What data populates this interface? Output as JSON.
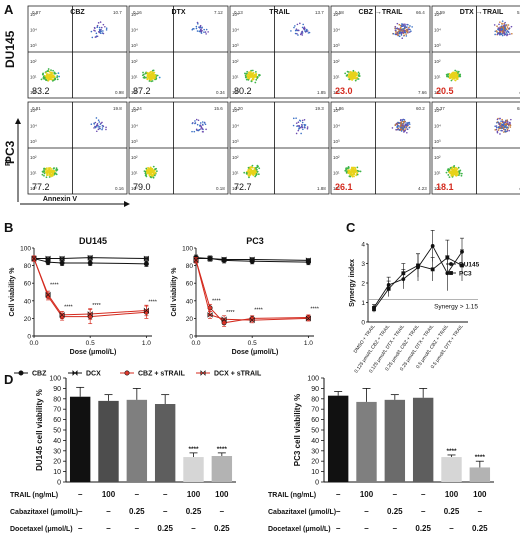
{
  "panel_labels": [
    "A",
    "B",
    "C",
    "D"
  ],
  "flow": {
    "columns": [
      "CBZ",
      "DTX",
      "TRAIL",
      "CBZ →TRAIL",
      "DTX →TRAIL"
    ],
    "rows": [
      {
        "name": "DU145",
        "panels": [
          {
            "ll": "83.2",
            "ul": "0.87",
            "ur": "10.7",
            "lr": "0.98",
            "ll_red": false
          },
          {
            "ll": "87.2",
            "ul": "0.16",
            "ur": "7.12",
            "lr": "0.34",
            "ll_red": false
          },
          {
            "ll": "80.2",
            "ul": "0.13",
            "ur": "13.7",
            "lr": "1.85",
            "ll_red": false
          },
          {
            "ll": "23.0",
            "ul": "0.58",
            "ur": "66.4",
            "lr": "7.66",
            "ll_red": true
          },
          {
            "ll": "20.5",
            "ul": "0.59",
            "ur": "51.8",
            "lr": "4.76",
            "ll_red": true
          }
        ]
      },
      {
        "name": "PC3",
        "panels": [
          {
            "ll": "77.2",
            "ul": "0.81",
            "ur": "19.8",
            "lr": "0.16",
            "ll_red": false
          },
          {
            "ll": "79.0",
            "ul": "0.24",
            "ur": "15.6",
            "lr": "0.18",
            "ll_red": false
          },
          {
            "ll": "72.7",
            "ul": "0.20",
            "ur": "19.3",
            "lr": "1.88",
            "ll_red": false
          },
          {
            "ll": "26.1",
            "ul": "1.86",
            "ur": "60.2",
            "lr": "4.23",
            "ll_red": true
          },
          {
            "ll": "18.1",
            "ul": "0.37",
            "ur": "68.6",
            "lr": "4.57",
            "ll_red": true
          }
        ]
      }
    ],
    "y_ticks": [
      "10⁵",
      "10⁴",
      "10³",
      "10²",
      "10¹",
      "10⁰"
    ],
    "x_axis_label": "Annexin V",
    "y_axis_label": "PI"
  },
  "chart_data": [
    {
      "type": "line",
      "title": "DU145",
      "xlabel": "Dose (μmol/L)",
      "ylabel": "Cell viability %",
      "xlim": [
        0,
        1.05
      ],
      "ylim": [
        0,
        100
      ],
      "x_ticks": [
        "0.0",
        "0.5",
        "1.0"
      ],
      "y_ticks": [
        "0",
        "20",
        "40",
        "60",
        "80",
        "100"
      ],
      "x": [
        0,
        0.125,
        0.25,
        0.5,
        1.0
      ],
      "series": [
        {
          "name": "CBZ",
          "values": [
            88,
            84,
            83,
            83,
            82
          ],
          "err": [
            3,
            3,
            3,
            3,
            3
          ],
          "marker": "circle",
          "fill": "#111111",
          "line": "#111111"
        },
        {
          "name": "DCX",
          "values": [
            88,
            88,
            88,
            89,
            88
          ],
          "err": [
            2,
            2,
            2,
            2,
            2
          ],
          "marker": "bowtie",
          "fill": "#111111",
          "line": "#111111"
        },
        {
          "name": "CBZ + sTRAIL",
          "values": [
            88,
            45,
            22,
            22,
            27
          ],
          "err": [
            3,
            4,
            4,
            8,
            7
          ],
          "marker": "circle",
          "fill": "#e03a2f",
          "line": "#d42a1e"
        },
        {
          "name": "DCX + sTRAIL",
          "values": [
            88,
            47,
            24,
            25,
            29
          ],
          "err": [
            3,
            4,
            4,
            6,
            6
          ],
          "marker": "bowtie",
          "fill": "#e03a2f",
          "line": "#d42a1e"
        }
      ],
      "annotations": [
        {
          "x": 0.125,
          "y": 56,
          "text": "****"
        },
        {
          "x": 0.25,
          "y": 31,
          "text": "****"
        },
        {
          "x": 0.5,
          "y": 33,
          "text": "****"
        },
        {
          "x": 1.0,
          "y": 37,
          "text": "****"
        }
      ]
    },
    {
      "type": "line",
      "title": "PC3",
      "xlabel": "Dose (μmol/L)",
      "ylabel": "Cell viability %",
      "xlim": [
        0,
        1.05
      ],
      "ylim": [
        0,
        100
      ],
      "x_ticks": [
        "0.0",
        "0.5",
        "1.0"
      ],
      "y_ticks": [
        "0",
        "20",
        "40",
        "60",
        "80",
        "100"
      ],
      "x": [
        0,
        0.125,
        0.25,
        0.5,
        1.0
      ],
      "series": [
        {
          "name": "CBZ",
          "values": [
            89,
            88,
            86,
            85,
            84
          ],
          "err": [
            3,
            3,
            3,
            3,
            3
          ],
          "marker": "circle",
          "fill": "#111111",
          "line": "#111111"
        },
        {
          "name": "DCX",
          "values": [
            88,
            88,
            87,
            87,
            86
          ],
          "err": [
            2,
            2,
            2,
            2,
            2
          ],
          "marker": "bowtie",
          "fill": "#111111",
          "line": "#111111"
        },
        {
          "name": "CBZ + sTRAIL",
          "values": [
            86,
            32,
            15,
            20,
            21
          ],
          "err": [
            3,
            4,
            4,
            3,
            3
          ],
          "marker": "circle",
          "fill": "#e03a2f",
          "line": "#d42a1e"
        },
        {
          "name": "DCX + sTRAIL",
          "values": [
            86,
            24,
            19,
            18,
            20
          ],
          "err": [
            3,
            4,
            4,
            3,
            3
          ],
          "marker": "bowtie",
          "fill": "#e03a2f",
          "line": "#d42a1e"
        }
      ],
      "annotations": [
        {
          "x": 0.125,
          "y": 38,
          "text": "****"
        },
        {
          "x": 0.25,
          "y": 25,
          "text": "****"
        },
        {
          "x": 0.5,
          "y": 28,
          "text": "****"
        },
        {
          "x": 1.0,
          "y": 29,
          "text": "****"
        }
      ]
    },
    {
      "type": "line",
      "title": "",
      "xlabel": "",
      "ylabel": "Synergy index",
      "ylim": [
        0,
        4
      ],
      "y_ticks": [
        "0",
        "1",
        "2",
        "3",
        "4"
      ],
      "categories": [
        "DMSO + TRAIL",
        "0.125 μmol/L CBZ + TRAIL",
        "0.125 μmol/L DTX + TRAIL",
        "0.25 μmol/L CBZ + TRAIL",
        "0.25 μmol/L DTX + TRAIL",
        "0.5 μmol/L CBZ + TRAIL",
        "0.5 μmol/L DTX + TRAIL"
      ],
      "series": [
        {
          "name": "DU145",
          "values": [
            0.75,
            1.9,
            2.2,
            2.8,
            3.9,
            2.5,
            3.6
          ],
          "err": [
            0.15,
            0.4,
            0.5,
            0.7,
            0.8,
            0.9,
            0.7
          ],
          "marker": "circle"
        },
        {
          "name": "PC3",
          "values": [
            0.65,
            1.7,
            2.5,
            2.9,
            2.7,
            3.3,
            2.9
          ],
          "err": [
            0.15,
            0.4,
            0.5,
            0.6,
            0.6,
            0.9,
            0.8
          ],
          "marker": "square"
        }
      ],
      "reference_line": {
        "y": 1.15,
        "label": "Synergy > 1.15"
      },
      "legend": "top-right"
    },
    {
      "type": "bar",
      "title": "",
      "ylabel": "DU145 cell viability %",
      "ylim": [
        0,
        100
      ],
      "y_ticks": [
        "0",
        "10",
        "20",
        "30",
        "40",
        "50",
        "60",
        "70",
        "80",
        "90",
        "100"
      ],
      "values": [
        82,
        78,
        79,
        75,
        24,
        25
      ],
      "err": [
        9,
        6,
        11,
        9,
        4,
        3
      ],
      "colors": [
        "#111111",
        "#4d4d4d",
        "#7f7f7f",
        "#5e5e5e",
        "#d6d6d6",
        "#b3b3b3"
      ],
      "stars": [
        "",
        "",
        "",
        "",
        "****",
        "****"
      ],
      "table_rows": [
        {
          "label": "TRAIL (ng/mL)",
          "cells": [
            "–",
            "100",
            "–",
            "–",
            "100",
            "100"
          ]
        },
        {
          "label": "Cabazitaxel (μmol/L)",
          "cells": [
            "–",
            "–",
            "0.25",
            "–",
            "0.25",
            "–"
          ]
        },
        {
          "label": "Docetaxel (μmol/L)",
          "cells": [
            "–",
            "–",
            "–",
            "0.25",
            "–",
            "0.25"
          ]
        }
      ]
    },
    {
      "type": "bar",
      "title": "",
      "ylabel": "PC3 cell viability %",
      "ylim": [
        0,
        100
      ],
      "y_ticks": [
        "0",
        "10",
        "20",
        "30",
        "40",
        "50",
        "60",
        "70",
        "80",
        "90",
        "100"
      ],
      "values": [
        83,
        77,
        79,
        81,
        24,
        14
      ],
      "err": [
        4,
        13,
        5,
        9,
        2,
        6
      ],
      "colors": [
        "#111111",
        "#7f7f7f",
        "#6b6b6b",
        "#5e5e5e",
        "#d6d6d6",
        "#b3b3b3"
      ],
      "stars": [
        "",
        "",
        "",
        "",
        "****",
        "****"
      ],
      "table_rows": [
        {
          "label": "TRAIL (ng/mL)",
          "cells": [
            "–",
            "100",
            "–",
            "–",
            "100",
            "100"
          ]
        },
        {
          "label": "Cabazitaxel (μmol/L)",
          "cells": [
            "–",
            "–",
            "0.25",
            "–",
            "0.25",
            "–"
          ]
        },
        {
          "label": "Docetaxel (μmol/L)",
          "cells": [
            "–",
            "–",
            "–",
            "0.25",
            "–",
            "0.25"
          ]
        }
      ]
    }
  ]
}
